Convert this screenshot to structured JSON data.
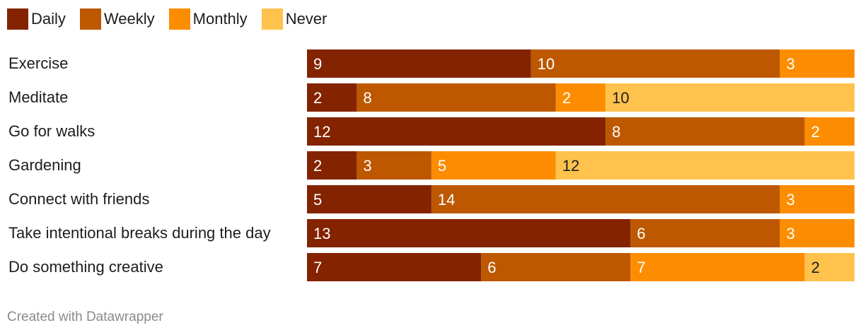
{
  "chart_data": {
    "type": "bar",
    "orientation": "horizontal",
    "stacked": true,
    "categories": [
      "Exercise",
      "Meditate",
      "Go for walks",
      "Gardening",
      "Connect with friends",
      "Take intentional breaks during the day",
      "Do something creative"
    ],
    "series": [
      {
        "name": "Daily",
        "color": "#832300",
        "values": [
          9,
          2,
          12,
          2,
          5,
          13,
          7
        ]
      },
      {
        "name": "Weekly",
        "color": "#bd5800",
        "values": [
          10,
          8,
          8,
          3,
          14,
          6,
          6
        ]
      },
      {
        "name": "Monthly",
        "color": "#fd8d00",
        "values": [
          3,
          2,
          2,
          5,
          3,
          3,
          7
        ]
      },
      {
        "name": "Never",
        "color": "#ffc24d",
        "values": [
          0,
          10,
          0,
          12,
          0,
          0,
          2
        ]
      }
    ],
    "xlim": [
      0,
      22
    ],
    "legend_position": "top-left",
    "grid": false
  },
  "footer": {
    "credit": "Created with Datawrapper"
  }
}
